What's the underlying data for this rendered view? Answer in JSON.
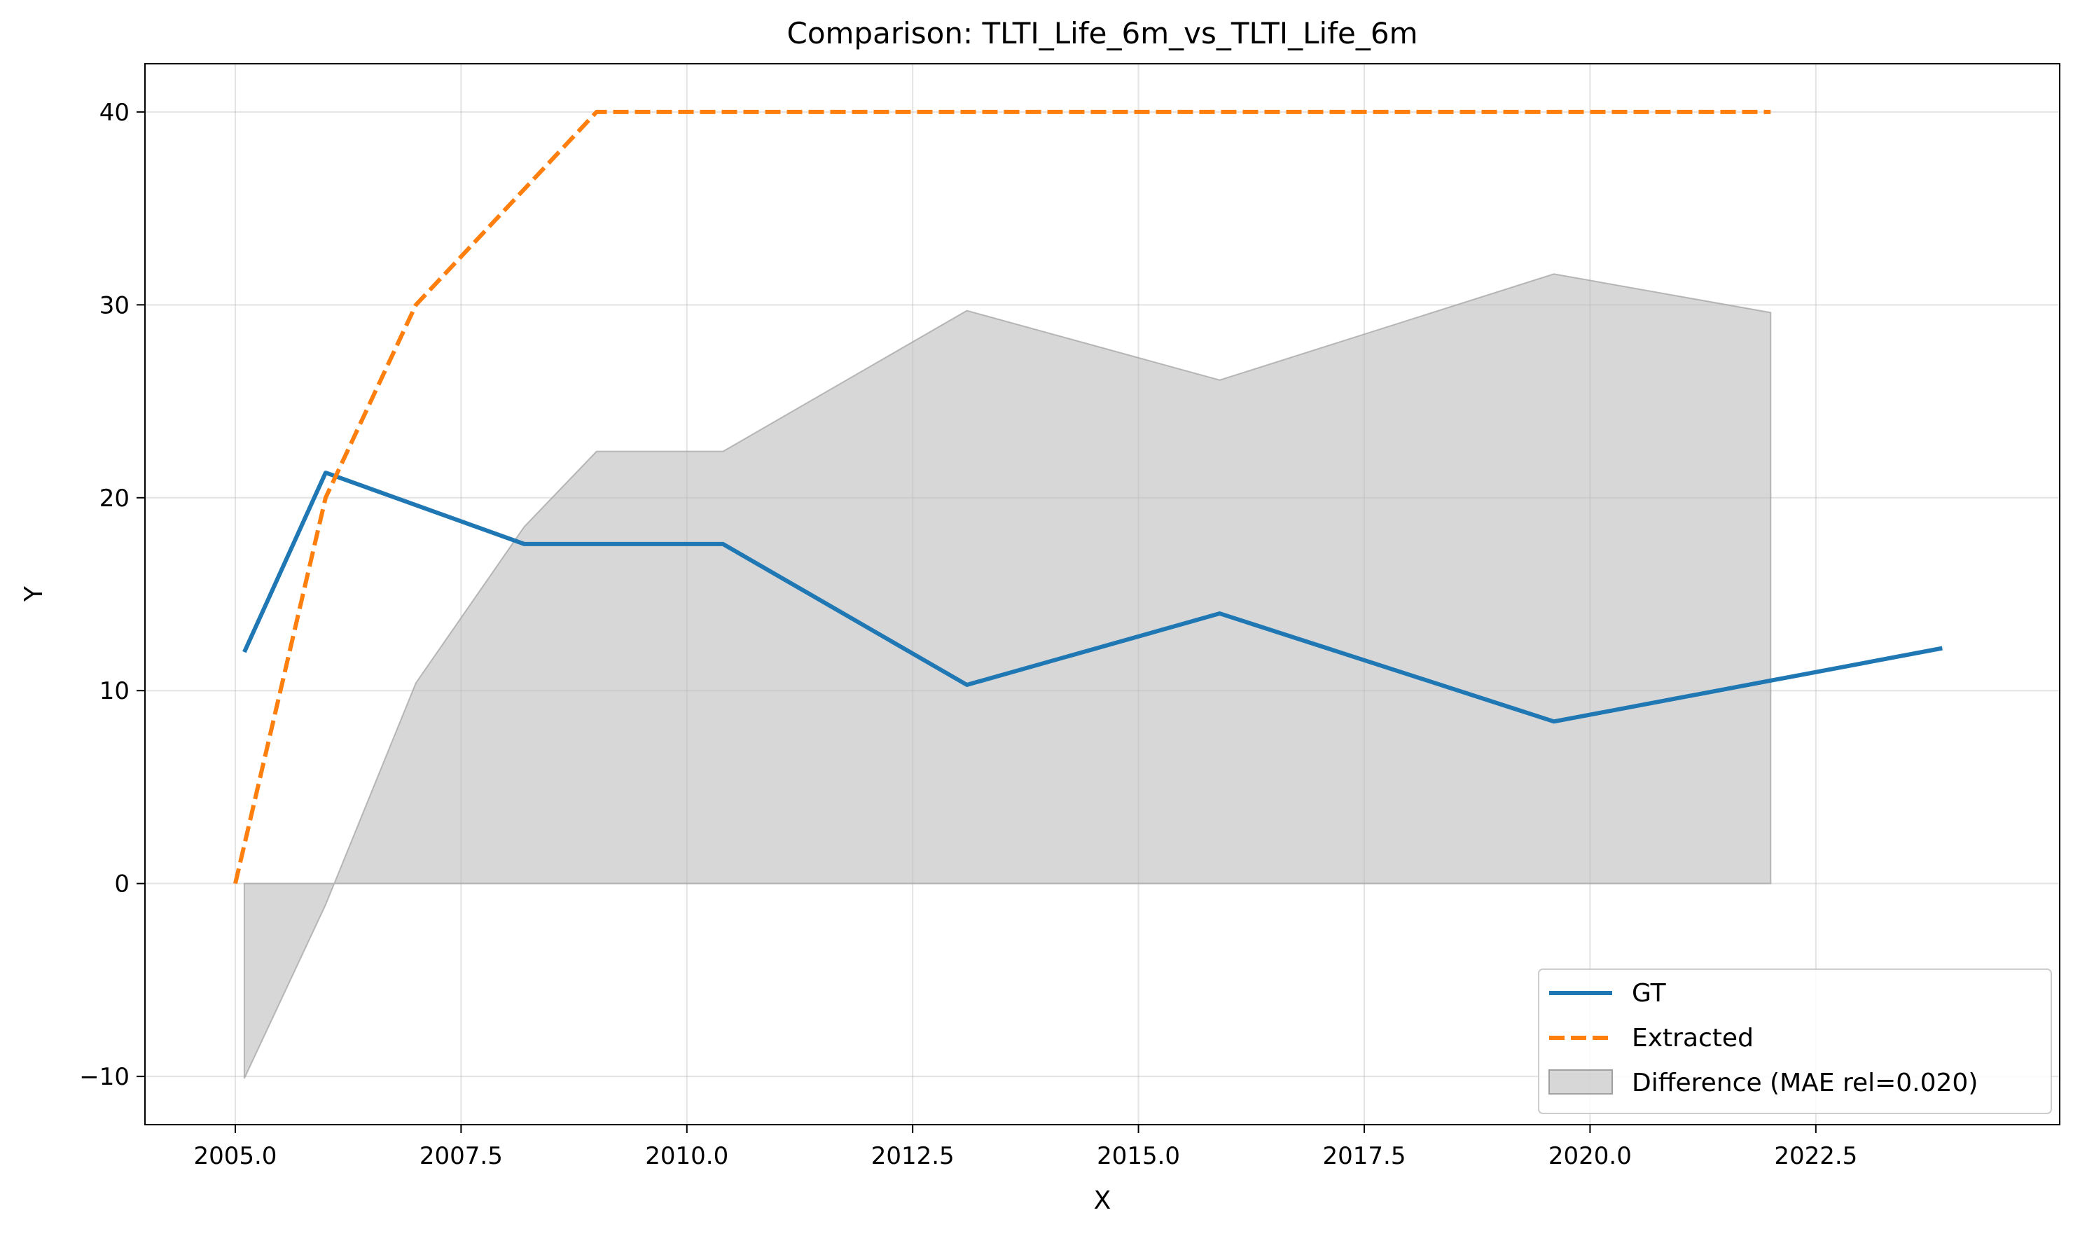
{
  "chart_data": {
    "type": "line",
    "title": "Comparison: TLTI_Life_6m_vs_TLTI_Life_6m",
    "xlabel": "X",
    "ylabel": "Y",
    "xlim": [
      2004.0,
      2025.2
    ],
    "ylim": [
      -12.5,
      42.5
    ],
    "x_ticks": [
      2005.0,
      2007.5,
      2010.0,
      2012.5,
      2015.0,
      2017.5,
      2020.0,
      2022.5
    ],
    "x_tick_labels": [
      "2005.0",
      "2007.5",
      "2010.0",
      "2012.5",
      "2015.0",
      "2017.5",
      "2020.0",
      "2022.5"
    ],
    "y_ticks": [
      -10,
      0,
      10,
      20,
      30,
      40
    ],
    "y_tick_labels": [
      "−10",
      "0",
      "10",
      "20",
      "30",
      "40"
    ],
    "grid": true,
    "legend_position": "lower-right",
    "series": [
      {
        "name": "GT",
        "style": "solid",
        "color": "#1f77b4",
        "x": [
          2005.1,
          2006.0,
          2008.2,
          2010.4,
          2013.1,
          2015.9,
          2019.6,
          2023.9
        ],
        "y": [
          12.0,
          21.3,
          17.6,
          17.6,
          10.3,
          14.0,
          8.4,
          12.2
        ]
      },
      {
        "name": "Extracted",
        "style": "dashed",
        "color": "#ff7f0e",
        "x": [
          2005.0,
          2006.0,
          2007.0,
          2009.0,
          2022.0
        ],
        "y": [
          0.0,
          20.0,
          30.0,
          40.0,
          40.0
        ]
      }
    ],
    "difference": {
      "name": "Difference (MAE rel=0.020)",
      "color": "#bdbdbd",
      "x": [
        2005.1,
        2006.0,
        2007.0,
        2008.2,
        2009.0,
        2010.4,
        2013.1,
        2015.9,
        2019.6,
        2022.0
      ],
      "y": [
        -10.1,
        -1.1,
        10.4,
        18.5,
        22.4,
        22.4,
        29.7,
        26.1,
        31.6,
        29.6
      ]
    }
  }
}
